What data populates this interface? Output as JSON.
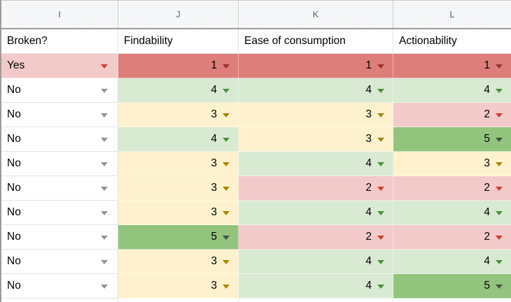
{
  "sheet": {
    "column_letters": [
      "I",
      "J",
      "K",
      "L"
    ],
    "field_headers": [
      "Broken?",
      "Findability",
      "Ease of consumption",
      "Actionability"
    ],
    "field_keys": [
      "broken",
      "findability",
      "ease-of-consumption",
      "actionability"
    ],
    "rows": [
      {
        "cells": [
          {
            "text": "Yes",
            "style": "yes"
          },
          {
            "text": "1",
            "style": "v1"
          },
          {
            "text": "1",
            "style": "v1"
          },
          {
            "text": "1",
            "style": "v1"
          }
        ]
      },
      {
        "cells": [
          {
            "text": "No",
            "style": "no"
          },
          {
            "text": "4",
            "style": "v4"
          },
          {
            "text": "4",
            "style": "v4"
          },
          {
            "text": "4",
            "style": "v4"
          }
        ]
      },
      {
        "cells": [
          {
            "text": "No",
            "style": "no"
          },
          {
            "text": "3",
            "style": "v3"
          },
          {
            "text": "3",
            "style": "v3"
          },
          {
            "text": "2",
            "style": "v2"
          }
        ]
      },
      {
        "cells": [
          {
            "text": "No",
            "style": "no"
          },
          {
            "text": "4",
            "style": "v4"
          },
          {
            "text": "3",
            "style": "v3"
          },
          {
            "text": "5",
            "style": "v5"
          }
        ]
      },
      {
        "cells": [
          {
            "text": "No",
            "style": "no"
          },
          {
            "text": "3",
            "style": "v3"
          },
          {
            "text": "4",
            "style": "v4"
          },
          {
            "text": "3",
            "style": "v3"
          }
        ]
      },
      {
        "cells": [
          {
            "text": "No",
            "style": "no"
          },
          {
            "text": "3",
            "style": "v3"
          },
          {
            "text": "2",
            "style": "v2"
          },
          {
            "text": "2",
            "style": "v2"
          }
        ]
      },
      {
        "cells": [
          {
            "text": "No",
            "style": "no"
          },
          {
            "text": "3",
            "style": "v3"
          },
          {
            "text": "4",
            "style": "v4"
          },
          {
            "text": "4",
            "style": "v4"
          }
        ]
      },
      {
        "cells": [
          {
            "text": "No",
            "style": "no"
          },
          {
            "text": "5",
            "style": "v5"
          },
          {
            "text": "2",
            "style": "v2"
          },
          {
            "text": "2",
            "style": "v2"
          }
        ]
      },
      {
        "cells": [
          {
            "text": "No",
            "style": "no"
          },
          {
            "text": "3",
            "style": "v3"
          },
          {
            "text": "4",
            "style": "v4"
          },
          {
            "text": "4",
            "style": "v4"
          }
        ]
      },
      {
        "cells": [
          {
            "text": "No",
            "style": "no"
          },
          {
            "text": "3",
            "style": "v3"
          },
          {
            "text": "4",
            "style": "v4"
          },
          {
            "text": "5",
            "style": "v5"
          }
        ]
      }
    ]
  },
  "colors": {
    "header_bg": "#f8f9fa",
    "gridline": "#e2e3e3",
    "red_bg": "#dd7e7b",
    "pink_bg": "#f3caca",
    "yellow_bg": "#fdf2cd",
    "ltgreen_bg": "#d9ead3",
    "green_bg": "#93c47d",
    "arrow_gray": "#949494",
    "arrow_red": "#cf3b31",
    "arrow_dark_red": "#9a332c",
    "arrow_olive": "#a8860d",
    "arrow_green": "#4b8f3d",
    "arrow_dark_green": "#46503f"
  }
}
